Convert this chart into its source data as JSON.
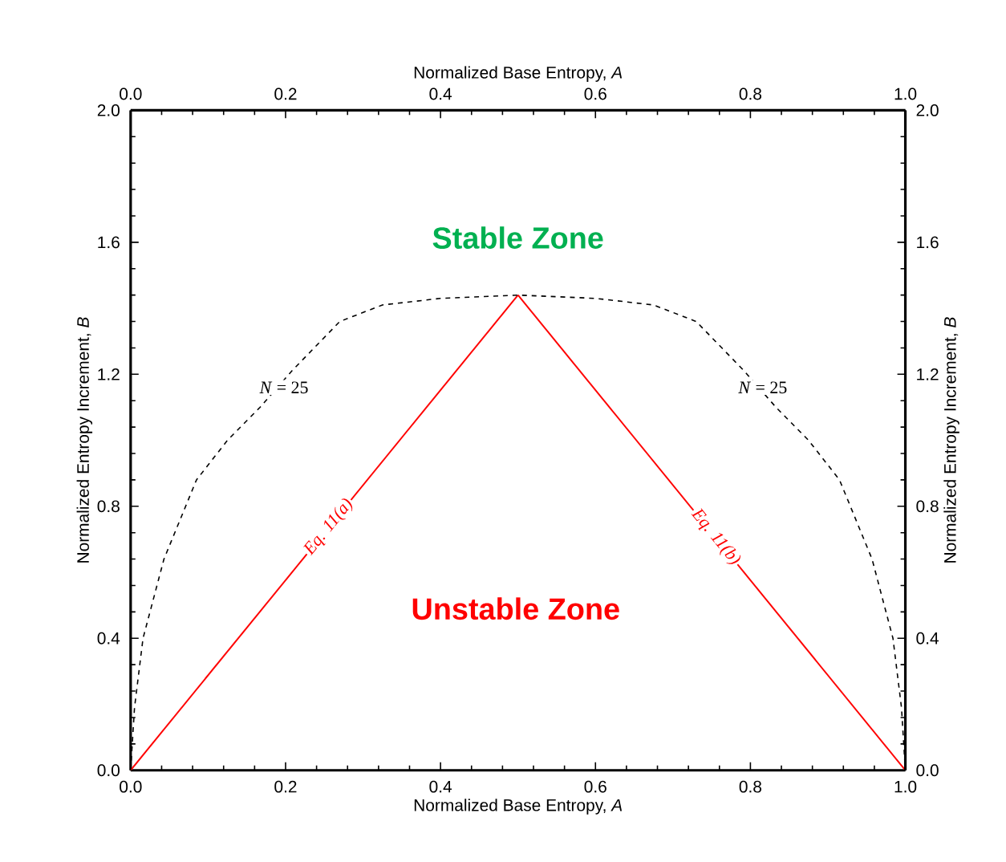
{
  "chart_data": {
    "type": "line",
    "xlabel": "Normalized Base Entropy, *A*",
    "ylabel": "Normalized Entropy Increment, *B*",
    "x2label": "Normalized Base Entropy, *A*",
    "y2label": "Normalized Entropy Increment, *B*",
    "xlim": [
      0,
      1
    ],
    "xticks": [
      {
        "value": 0,
        "label": "0.0"
      },
      0.2,
      0.4,
      0.6,
      0.8,
      {
        "value": 1,
        "label": "1.0"
      }
    ],
    "x2lim": [
      0,
      1
    ],
    "x2ticks": [
      {
        "value": 0,
        "label": "0.0"
      },
      0.2,
      0.4,
      0.6,
      0.8,
      {
        "value": 1,
        "label": "1.0"
      }
    ],
    "ylim": [
      0,
      2
    ],
    "yticks": [
      {
        "value": 0,
        "label": "0.0"
      },
      0.4,
      0.8,
      1.2,
      1.6,
      {
        "value": 2,
        "label": "2.0"
      }
    ],
    "y2lim": [
      0,
      2
    ],
    "y2ticks": [
      {
        "value": 0,
        "label": "0.0"
      },
      0.4,
      0.8,
      1.2,
      1.6,
      {
        "value": 2,
        "label": "2.0"
      }
    ],
    "marker": "none",
    "series": [
      {
        "color": "#ff0000",
        "line_style": "solid",
        "x": [
          0,
          0.5
        ],
        "values": [
          0,
          1.44
        ]
      },
      {
        "color": "#ff0000",
        "line_style": "solid",
        "x": [
          0.5,
          1
        ],
        "values": [
          1.44,
          0
        ]
      },
      {
        "color": "#000000",
        "line_style": "dashed",
        "x": [
          0,
          0.005,
          0.016,
          0.043,
          0.085,
          0.125,
          0.167,
          0.208,
          0.27,
          0.325,
          0.4,
          0.5,
          0.6,
          0.675,
          0.73,
          0.792,
          0.833,
          0.875,
          0.915,
          0.957,
          0.984,
          0.995,
          1
        ],
        "values": [
          0,
          0.19,
          0.4,
          0.64,
          0.88,
          1.0,
          1.1,
          1.21,
          1.36,
          1.41,
          1.43,
          1.44,
          1.43,
          1.41,
          1.36,
          1.21,
          1.1,
          1.0,
          0.88,
          0.64,
          0.4,
          0.19,
          0
        ]
      }
    ],
    "annotations": [
      "Stable Zone",
      "Unstable Zone",
      {
        "text": "*N* = 25",
        "x": 0.198,
        "y": 1.16
      },
      {
        "text": "*N* = 25",
        "x": 0.816,
        "y": 1.16
      },
      {
        "text": "Eq. 11(a)",
        "x": 0.256,
        "y": 0.737
      },
      {
        "text": "Eq. 11(b)",
        "x": 0.755,
        "y": 0.706
      }
    ]
  }
}
